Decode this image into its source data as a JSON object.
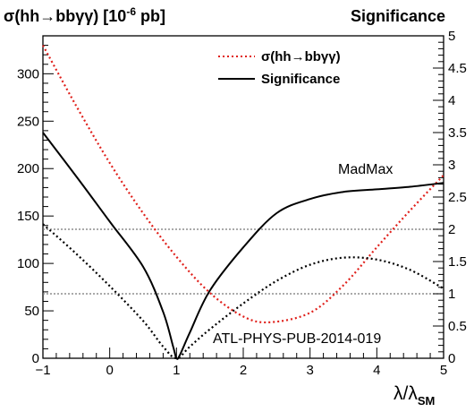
{
  "chart_data": {
    "type": "line",
    "left_title": "σ(hh→bbγγ) [10",
    "left_title_exp": "-6",
    "left_title_tail": " pb]",
    "right_title": "Significance",
    "xlabel_main": "λ/λ",
    "xlabel_sub": "SM",
    "xlim": [
      -1,
      5
    ],
    "ylim_left": [
      0,
      340
    ],
    "ylim_right": [
      0,
      5
    ],
    "x_ticks": [
      "−1",
      "0",
      "1",
      "2",
      "3",
      "4",
      "5"
    ],
    "x_tick_values": [
      -1,
      0,
      1,
      2,
      3,
      4,
      5
    ],
    "y_left_ticks": [
      "0",
      "50",
      "100",
      "150",
      "200",
      "250",
      "300"
    ],
    "y_left_tick_values": [
      0,
      50,
      100,
      150,
      200,
      250,
      300
    ],
    "y_right_ticks": [
      "0",
      "0.5",
      "1",
      "1.5",
      "2",
      "2.5",
      "3",
      "3.5",
      "4",
      "4.5",
      "5"
    ],
    "y_right_tick_values": [
      0,
      0.5,
      1,
      1.5,
      2,
      2.5,
      3,
      3.5,
      4,
      4.5,
      5
    ],
    "reference_lines_right": [
      1,
      2
    ],
    "legend": {
      "placement": "top-center",
      "entries": [
        {
          "label": "σ(hh→bbγγ)",
          "color": "#e0201b",
          "style": "dotted"
        },
        {
          "label": "Significance",
          "color": "#000000",
          "style": "solid"
        }
      ]
    },
    "annotations": [
      "MadMax",
      "ATL-PHYS-PUB-2014-019"
    ],
    "series": [
      {
        "label": "σ(hh→bbγγ)",
        "axis": "left",
        "color": "#e0201b",
        "style": "dotted",
        "x": [
          -1,
          -0.5,
          0,
          0.5,
          1,
          1.5,
          2,
          2.4,
          3,
          3.5,
          4,
          4.5,
          5
        ],
        "y": [
          330,
          266,
          206,
          153,
          107,
          69,
          44,
          38,
          48,
          77,
          117,
          156,
          193
        ]
      },
      {
        "label": "Significance",
        "axis": "right",
        "color": "#000000",
        "style": "solid",
        "x": [
          -1,
          -0.5,
          0,
          0.5,
          0.8,
          0.95,
          1,
          1.05,
          1.2,
          1.5,
          2,
          2.5,
          3,
          3.5,
          4,
          4.5,
          5
        ],
        "y": [
          3.5,
          2.82,
          2.12,
          1.42,
          0.72,
          0.18,
          0.0,
          0.05,
          0.4,
          1.05,
          1.72,
          2.25,
          2.47,
          2.58,
          2.62,
          2.66,
          2.72
        ]
      },
      {
        "label": "significance (dotted)",
        "axis": "right",
        "color": "#000000",
        "style": "dotted",
        "x": [
          -1,
          -0.5,
          0,
          0.5,
          0.8,
          1,
          1.2,
          1.5,
          2,
          2.5,
          3,
          3.5,
          4,
          4.5,
          5
        ],
        "y": [
          2.08,
          1.62,
          1.12,
          0.58,
          0.18,
          0.0,
          0.18,
          0.45,
          0.85,
          1.2,
          1.45,
          1.56,
          1.53,
          1.37,
          1.08
        ]
      }
    ]
  }
}
